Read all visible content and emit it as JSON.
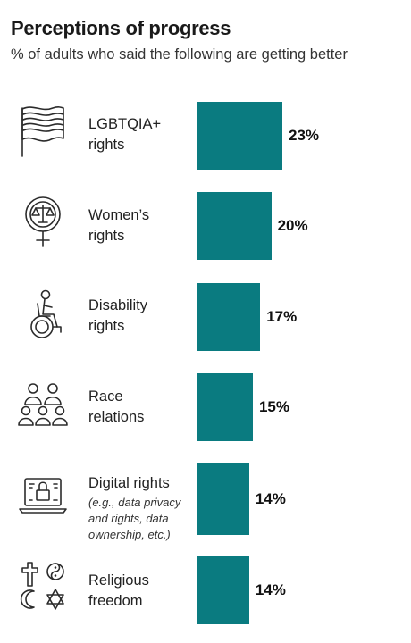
{
  "chart_data": {
    "type": "bar",
    "orientation": "horizontal",
    "title": "Perceptions of progress",
    "subtitle": "% of adults who said the following are getting better",
    "categories": [
      {
        "label": "LGBTQIA+\nrights",
        "note": "",
        "icon": "pride-flag-icon"
      },
      {
        "label": "Women’s\nrights",
        "note": "",
        "icon": "female-symbol-scales-icon"
      },
      {
        "label": "Disability\nrights",
        "note": "",
        "icon": "wheelchair-user-icon"
      },
      {
        "label": "Race\nrelations",
        "note": "",
        "icon": "group-of-people-icon"
      },
      {
        "label": "Digital rights",
        "note": "(e.g., data privacy\nand rights, data\nownership, etc.)",
        "icon": "laptop-lock-icon"
      },
      {
        "label": "Religious\nfreedom",
        "note": "",
        "icon": "religious-symbols-icon"
      }
    ],
    "values": [
      23,
      20,
      17,
      15,
      14,
      14
    ],
    "value_labels": [
      "23%",
      "20%",
      "17%",
      "15%",
      "14%",
      "14%"
    ],
    "unit": "%",
    "xlim": [
      0,
      35
    ],
    "grid": false,
    "legend": "none",
    "bar_color": "#0a7b80"
  }
}
